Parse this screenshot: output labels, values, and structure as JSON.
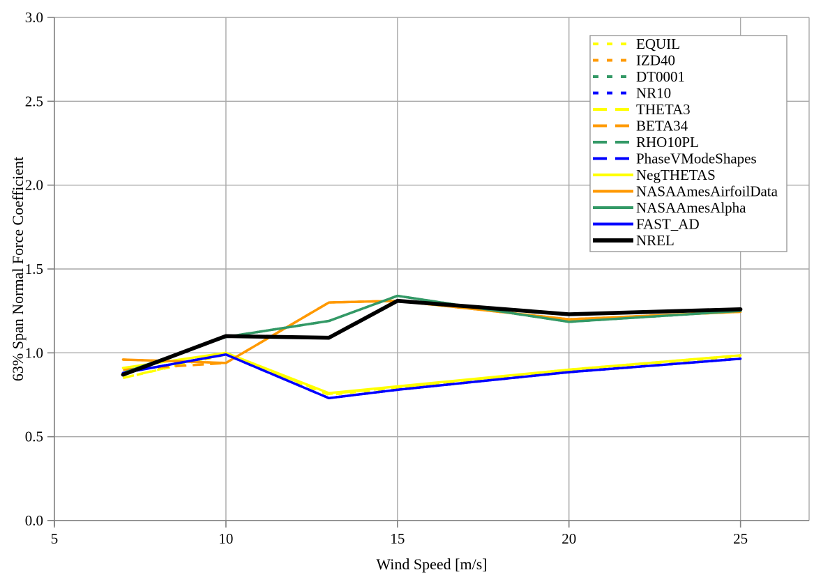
{
  "chart_data": {
    "type": "line",
    "title": "",
    "xlabel": "Wind Speed [m/s]",
    "ylabel": "63% Span Normal Force Coefficient",
    "x": [
      7,
      10,
      13,
      15,
      20,
      25
    ],
    "xlim": [
      5,
      27
    ],
    "ylim": [
      0.0,
      3.0
    ],
    "x_ticks": [
      5,
      10,
      15,
      20,
      25
    ],
    "y_ticks": [
      "0.0",
      "0.5",
      "1.0",
      "1.5",
      "2.0",
      "2.5",
      "3.0"
    ],
    "grid": true,
    "legend_position": "top-right",
    "series": [
      {
        "name": "EQUIL",
        "color": "#FFFF00",
        "dash": "short",
        "width": 3.4,
        "values": [
          0.85,
          0.99,
          0.75,
          0.79,
          0.895,
          0.98
        ]
      },
      {
        "name": "IZD40",
        "color": "#FF9900",
        "dash": "short",
        "width": 3.4,
        "values": [
          0.96,
          0.94,
          1.3,
          1.31,
          1.2,
          1.245
        ]
      },
      {
        "name": "DT0001",
        "color": "#339966",
        "dash": "short",
        "width": 3.4,
        "values": [
          0.88,
          1.095,
          1.19,
          1.34,
          1.185,
          1.25
        ]
      },
      {
        "name": "NR10",
        "color": "#0000FF",
        "dash": "short",
        "width": 3.4,
        "values": [
          0.88,
          0.99,
          0.73,
          0.78,
          0.885,
          0.965
        ]
      },
      {
        "name": "THETA3",
        "color": "#FFFF00",
        "dash": "long",
        "width": 3.4,
        "values": [
          0.85,
          0.995,
          0.755,
          0.795,
          0.9,
          0.985
        ]
      },
      {
        "name": "BETA34",
        "color": "#FF9900",
        "dash": "long",
        "width": 3.4,
        "values": [
          0.9,
          0.94,
          1.3,
          1.31,
          1.2,
          1.245
        ]
      },
      {
        "name": "RHO10PL",
        "color": "#339966",
        "dash": "long",
        "width": 3.4,
        "values": [
          0.88,
          1.095,
          1.19,
          1.34,
          1.185,
          1.25
        ]
      },
      {
        "name": "PhaseVModeShapes",
        "color": "#0000FF",
        "dash": "long",
        "width": 3.4,
        "values": [
          0.88,
          0.99,
          0.73,
          0.78,
          0.885,
          0.965
        ]
      },
      {
        "name": "NegTHETAS",
        "color": "#FFFF00",
        "dash": "solid",
        "width": 3.4,
        "values": [
          0.91,
          1.0,
          0.76,
          0.8,
          0.9,
          0.985
        ]
      },
      {
        "name": "NASAAmesAirfoilData",
        "color": "#FF9900",
        "dash": "solid",
        "width": 3.4,
        "values": [
          0.96,
          0.94,
          1.3,
          1.31,
          1.2,
          1.245
        ]
      },
      {
        "name": "NASAAmesAlpha",
        "color": "#339966",
        "dash": "solid",
        "width": 3.4,
        "values": [
          0.88,
          1.095,
          1.19,
          1.34,
          1.185,
          1.25
        ]
      },
      {
        "name": "FAST_AD",
        "color": "#0000FF",
        "dash": "solid",
        "width": 3.4,
        "values": [
          0.88,
          0.99,
          0.73,
          0.78,
          0.885,
          0.965
        ]
      },
      {
        "name": "NREL",
        "color": "#000000",
        "dash": "solid",
        "width": 5.6,
        "values": [
          0.87,
          1.1,
          1.09,
          1.31,
          1.23,
          1.26
        ]
      }
    ]
  },
  "style": {
    "gridline_color": "#a9a9a9",
    "axis_color": "#808080",
    "legend_border_color": "#999999",
    "background": "#ffffff",
    "text_color": "#000000"
  }
}
